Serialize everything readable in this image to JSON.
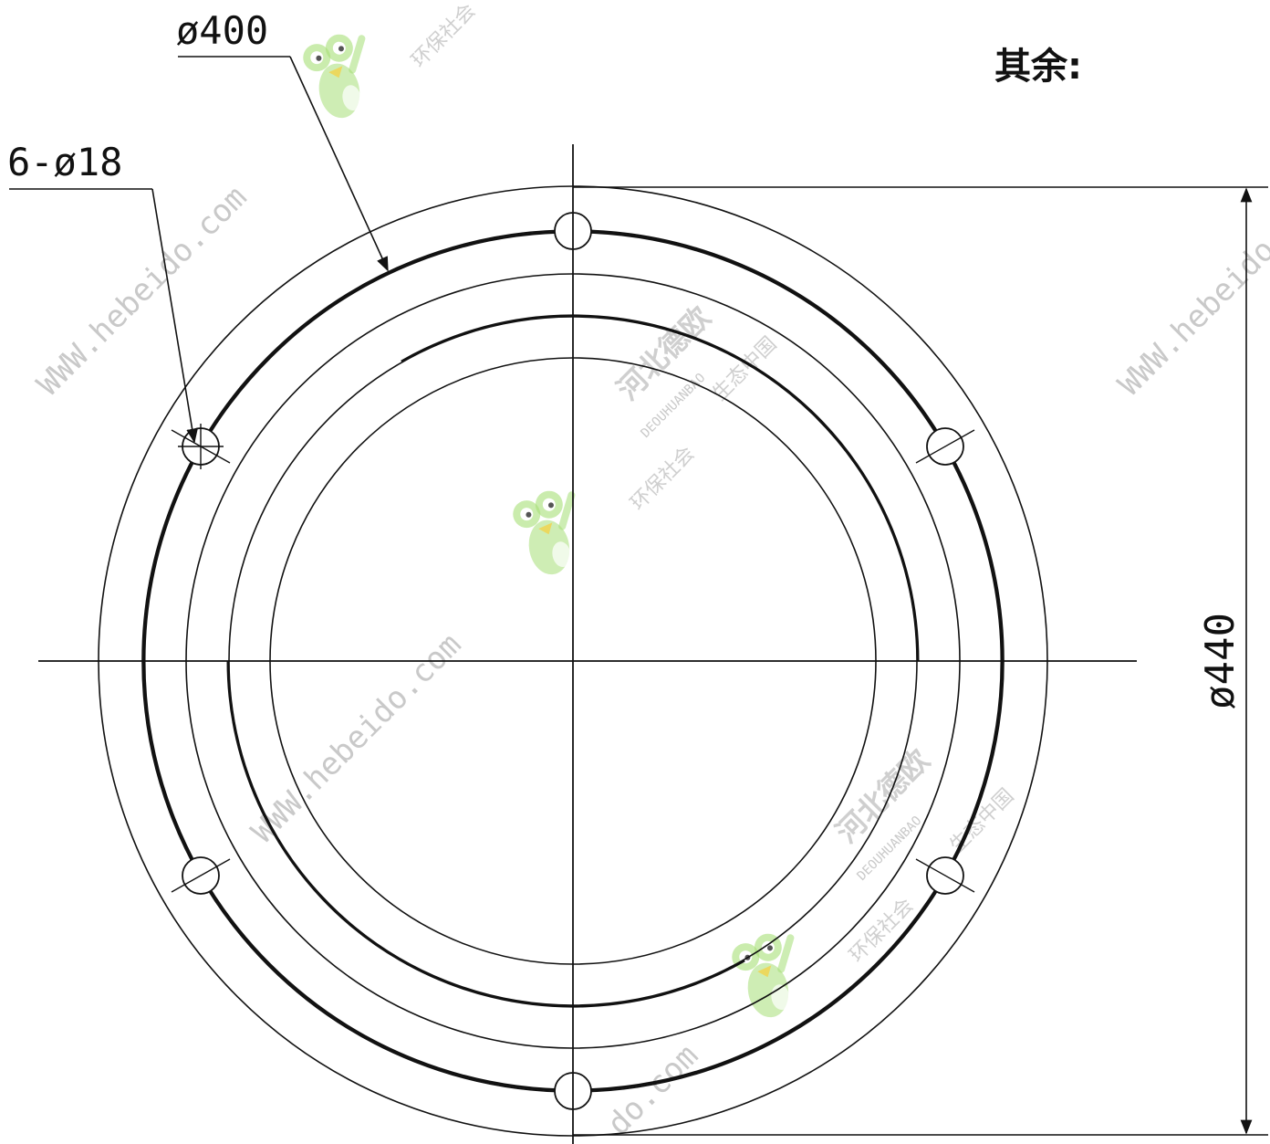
{
  "labels": {
    "diameter_outer": "ø440",
    "diameter_bolt_circle": "ø400",
    "holes": "6-ø18",
    "remaining_note": "其余:"
  },
  "watermark": {
    "url": "WWW.hebeido.com",
    "url_short": "do.com",
    "brand_cn": "河北德欧",
    "brand_en": "DEOUHUANBAO",
    "slogan_a": "环保社会",
    "slogan_b": "生态中国",
    "logo_icon": "frog-mascot-icon"
  },
  "colors": {
    "line": "#111111",
    "watermark_text": "#c9c9c9",
    "frog_green": "#9ad86b"
  }
}
